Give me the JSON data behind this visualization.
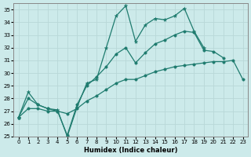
{
  "xlabel": "Humidex (Indice chaleur)",
  "bg_color": "#cceaea",
  "grid_color": "#b8d8d8",
  "line_color": "#1e7b6e",
  "xlim": [
    -0.5,
    23.5
  ],
  "ylim": [
    25,
    35.5
  ],
  "xticks": [
    0,
    1,
    2,
    3,
    4,
    5,
    6,
    7,
    8,
    9,
    10,
    11,
    12,
    13,
    14,
    15,
    16,
    17,
    18,
    19,
    20,
    21,
    22,
    23
  ],
  "yticks": [
    25,
    26,
    27,
    28,
    29,
    30,
    31,
    32,
    33,
    34,
    35
  ],
  "series1_y": [
    26.5,
    28.5,
    27.5,
    27.2,
    27.1,
    25.0,
    27.3,
    29.2,
    29.5,
    32.0,
    34.5,
    35.3,
    32.5,
    33.8,
    34.3,
    34.2,
    34.5,
    35.1,
    33.3,
    32.0,
    null,
    null,
    null,
    null
  ],
  "series2_y": [
    26.5,
    28.0,
    27.5,
    27.2,
    27.0,
    25.1,
    27.5,
    29.0,
    29.7,
    30.5,
    31.5,
    32.0,
    30.8,
    31.6,
    32.3,
    32.6,
    33.0,
    33.3,
    33.2,
    31.8,
    31.7,
    31.2,
    null,
    null
  ],
  "series3_y": [
    26.5,
    27.2,
    27.2,
    27.0,
    27.0,
    26.8,
    27.2,
    27.8,
    28.2,
    28.7,
    29.2,
    29.5,
    29.5,
    29.8,
    30.1,
    30.3,
    30.5,
    30.6,
    30.7,
    30.8,
    30.9,
    30.9,
    31.0,
    29.5
  ]
}
